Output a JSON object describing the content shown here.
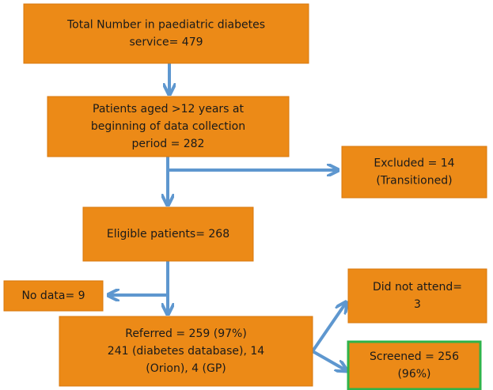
{
  "nodes": [
    {
      "lines": [
        "Total Number in paediatric diabetes",
        "service= 479"
      ]
    },
    {
      "lines": [
        "Patients aged >12 years at",
        "beginning of data collection",
        "period = 282"
      ]
    },
    {
      "lines": [
        "Excluded = 14",
        "(Transitioned)"
      ]
    },
    {
      "lines": [
        "Eligible patients= 268"
      ]
    },
    {
      "lines": [
        "No data= 9"
      ]
    },
    {
      "lines": [
        "Did not attend=",
        "3"
      ]
    },
    {
      "lines": [
        "Referred = 259 (97%)",
        "241 (diabetes database), 14",
        "(Orion), 4 (GP)"
      ]
    },
    {
      "lines": [
        "Screened = 256",
        "(96%)"
      ]
    }
  ]
}
